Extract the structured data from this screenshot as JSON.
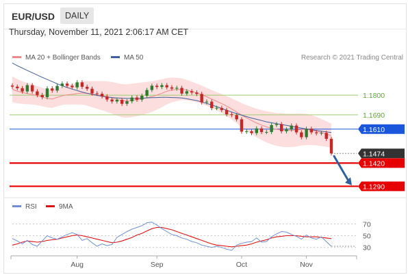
{
  "header": {
    "symbol": "EUR/USD",
    "period": "DAILY"
  },
  "datetime": "Thursday, November 11, 2021 2:06:17 AM CET",
  "legend": {
    "bollinger": "MA 20 + Bollinger Bands",
    "ma50": "MA 50",
    "rsi": "RSI",
    "rsi_ma": "9MA"
  },
  "credit": "Research © 2021 Trading Central",
  "colors": {
    "bollinger": "#f08a8a",
    "ma50": "#3f5f9a",
    "rsi": "#6e8fd8",
    "rsi_ma": "#e01010",
    "resistance": "#9dcc6e",
    "pivot": "#1a56db",
    "support": "#e60000",
    "last": "#333333",
    "up": "#2f7a2f",
    "down": "#c62828",
    "arrow": "#2f5f9f"
  },
  "chart_data": [
    {
      "type": "candlestick",
      "ylim": [
        1.123,
        1.195
      ],
      "x_ticks": [
        "Aug",
        "Sep",
        "Oct",
        "Nov"
      ],
      "levels": [
        {
          "label": "1.1800",
          "value": 1.18,
          "kind": "resistance"
        },
        {
          "label": "1.1690",
          "value": 1.169,
          "kind": "resistance"
        },
        {
          "label": "1.1610",
          "value": 1.161,
          "kind": "pivot"
        },
        {
          "label": "1.1474",
          "value": 1.1474,
          "kind": "last"
        },
        {
          "label": "1.1420",
          "value": 1.142,
          "kind": "support"
        },
        {
          "label": "1.1290",
          "value": 1.129,
          "kind": "support"
        }
      ],
      "series": [
        {
          "name": "MA 20 + Bollinger Bands",
          "values": [
            1.1833,
            1.1822,
            1.1815,
            1.1809,
            1.1804,
            1.1798,
            1.179,
            1.1782,
            1.1779,
            1.1788,
            1.1797,
            1.1802,
            1.1805,
            1.1809,
            1.1812,
            1.181,
            1.1806,
            1.1802,
            1.1797,
            1.1792,
            1.1785,
            1.1777,
            1.1769,
            1.1767,
            1.1771,
            1.1775,
            1.178,
            1.1786,
            1.1792,
            1.1801,
            1.1811,
            1.1822,
            1.183,
            1.1832,
            1.1833,
            1.1829,
            1.1821,
            1.1813,
            1.1803,
            1.1791,
            1.1778,
            1.1766,
            1.1753,
            1.1739,
            1.1723,
            1.1706,
            1.1689,
            1.1673,
            1.1658,
            1.1644,
            1.1633,
            1.1623,
            1.1615,
            1.1609,
            1.1605,
            1.1603,
            1.1603,
            1.1605,
            1.1608,
            1.1608,
            1.1605,
            1.1599,
            1.1591,
            1.1583,
            1.1574
          ]
        },
        {
          "name": "MA 50",
          "values": [
            1.198,
            1.1965,
            1.1952,
            1.1939,
            1.1926,
            1.1913,
            1.19,
            1.1888,
            1.1876,
            1.1864,
            1.1853,
            1.1843,
            1.1834,
            1.1826,
            1.1818,
            1.1811,
            1.1805,
            1.1799,
            1.1794,
            1.179,
            1.1787,
            1.1785,
            1.1783,
            1.1782,
            1.1782,
            1.1782,
            1.1783,
            1.1785,
            1.1786,
            1.1787,
            1.1788,
            1.1788,
            1.1787,
            1.1786,
            1.1784,
            1.178,
            1.1775,
            1.177,
            1.1762,
            1.1754,
            1.1745,
            1.1736,
            1.1726,
            1.1716,
            1.1706,
            1.1697,
            1.1688,
            1.168,
            1.1672,
            1.1665,
            1.1658,
            1.1651,
            1.1646,
            1.1641,
            1.1636,
            1.1631,
            1.1626,
            1.1621,
            1.1616,
            1.1611,
            1.1607,
            1.1603,
            1.1599,
            1.1595,
            1.1591
          ]
        }
      ],
      "close": [
        1.1848,
        1.1839,
        1.1821,
        1.1856,
        1.1821,
        1.1801,
        1.1789,
        1.1838,
        1.1826,
        1.1852,
        1.1865,
        1.1853,
        1.1844,
        1.1872,
        1.1847,
        1.1836,
        1.181,
        1.1808,
        1.1793,
        1.1776,
        1.1765,
        1.1774,
        1.1752,
        1.1766,
        1.1787,
        1.1775,
        1.1797,
        1.1829,
        1.1853,
        1.1846,
        1.1856,
        1.1844,
        1.1837,
        1.1841,
        1.1809,
        1.1822,
        1.1815,
        1.1807,
        1.176,
        1.1764,
        1.1728,
        1.1729,
        1.1717,
        1.1693,
        1.1689,
        1.1665,
        1.1596,
        1.1598,
        1.1588,
        1.1614,
        1.1594,
        1.1594,
        1.1633,
        1.1638,
        1.1598,
        1.1608,
        1.163,
        1.1592,
        1.1565,
        1.1612,
        1.1592,
        1.1587,
        1.1589,
        1.1556,
        1.1474
      ]
    },
    {
      "type": "line",
      "ylim": [
        18,
        82
      ],
      "y_ticks": [
        70,
        50,
        30
      ],
      "series": [
        {
          "name": "RSI",
          "values": [
            45,
            41,
            36,
            42,
            35,
            32,
            41,
            50,
            46,
            44,
            48,
            52,
            55,
            52,
            42,
            45,
            38,
            32,
            36,
            33,
            35,
            47,
            52,
            57,
            61,
            64,
            67,
            72,
            73,
            68,
            62,
            57,
            52,
            50,
            46,
            44,
            40,
            38,
            34,
            32,
            30,
            32,
            30,
            27,
            25,
            34,
            37,
            39,
            40,
            46,
            39,
            40,
            48,
            53,
            57,
            56,
            52,
            49,
            44,
            51,
            46,
            44,
            48,
            40,
            32
          ]
        },
        {
          "name": "9MA",
          "values": [
            34,
            36,
            39,
            41,
            40,
            39,
            40,
            42,
            43,
            44,
            46,
            48,
            50,
            51,
            50,
            48,
            46,
            44,
            42,
            40,
            38,
            39,
            41,
            44,
            47,
            51,
            54,
            58,
            62,
            64,
            64,
            62,
            60,
            57,
            54,
            51,
            48,
            45,
            42,
            39,
            36,
            34,
            33,
            32,
            31,
            32,
            33,
            34,
            36,
            39,
            41,
            43,
            46,
            48,
            49,
            50,
            50,
            50,
            49,
            48,
            48,
            48,
            47,
            46,
            45
          ]
        }
      ]
    }
  ]
}
